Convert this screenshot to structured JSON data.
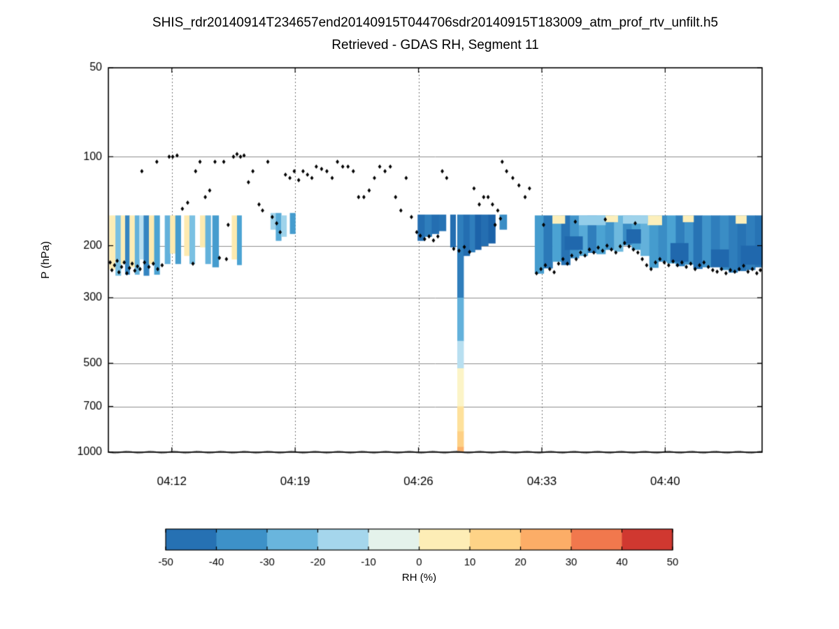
{
  "figure": {
    "title": "SHIS_rdr20140914T234657end20140915T044706sdr20140915T183009_atm_prof_rtv_unfilt.h5",
    "subtitle": "Retrieved - GDAS RH, Segment 11",
    "ylabel": "P (hPa)",
    "colorbar_label": "RH (%)"
  },
  "chart_data": {
    "type": "heatmap",
    "title": "SHIS_rdr20140914T234657end20140915T044706sdr20140915T183009_atm_prof_rtv_unfilt.h5",
    "subtitle": "Retrieved - GDAS RH, Segment 11",
    "xlabel": "",
    "ylabel": "P (hPa)",
    "y_scale": "log",
    "y_range": [
      50,
      1000
    ],
    "y_ticks": [
      50,
      100,
      200,
      300,
      500,
      700,
      1000
    ],
    "y_gridlines": [
      100,
      200,
      300,
      500,
      700
    ],
    "x_range_minutes": [
      8.4,
      45.5
    ],
    "x_ticks": [
      {
        "label": "04:12",
        "minute": 12
      },
      {
        "label": "04:19",
        "minute": 19
      },
      {
        "label": "04:26",
        "minute": 26
      },
      {
        "label": "04:33",
        "minute": 33
      },
      {
        "label": "04:40",
        "minute": 40
      }
    ],
    "colorbar": {
      "label": "RH (%)",
      "range": [
        -50,
        50
      ],
      "ticks": [
        -50,
        -40,
        -30,
        -20,
        -10,
        0,
        10,
        20,
        30,
        40,
        50
      ],
      "colormap_stops": [
        [
          -50,
          "#1c63a9"
        ],
        [
          -40,
          "#2f7ebc"
        ],
        [
          -30,
          "#4ba3d3"
        ],
        [
          -20,
          "#86c7e6"
        ],
        [
          -12,
          "#b8dff0"
        ],
        [
          -6,
          "#dff0f0"
        ],
        [
          0,
          "#fbf9d2"
        ],
        [
          6,
          "#fdeab0"
        ],
        [
          12,
          "#fedc90"
        ],
        [
          20,
          "#fdc377"
        ],
        [
          28,
          "#fb9f5d"
        ],
        [
          36,
          "#f0724b"
        ],
        [
          44,
          "#d43d30"
        ],
        [
          50,
          "#b91f2e"
        ]
      ]
    },
    "heatmap_rects": [
      [
        8.45,
        8.8,
        158,
        240,
        5
      ],
      [
        8.8,
        9.1,
        158,
        252,
        -22
      ],
      [
        9.1,
        9.35,
        158,
        230,
        5
      ],
      [
        9.35,
        9.6,
        158,
        250,
        -38
      ],
      [
        9.6,
        9.9,
        158,
        236,
        5
      ],
      [
        9.9,
        10.15,
        158,
        250,
        -26
      ],
      [
        10.15,
        10.4,
        158,
        222,
        -12
      ],
      [
        10.4,
        10.7,
        158,
        252,
        -38
      ],
      [
        10.7,
        11.0,
        158,
        230,
        6
      ],
      [
        11.0,
        11.3,
        158,
        250,
        -30
      ],
      [
        11.6,
        11.9,
        158,
        230,
        -26
      ],
      [
        11.9,
        12.2,
        158,
        212,
        6
      ],
      [
        12.2,
        12.5,
        158,
        230,
        -32
      ],
      [
        12.7,
        13.0,
        158,
        216,
        6
      ],
      [
        13.0,
        13.3,
        158,
        230,
        -22
      ],
      [
        13.6,
        13.9,
        158,
        202,
        6
      ],
      [
        13.9,
        14.2,
        158,
        230,
        -26
      ],
      [
        14.3,
        14.65,
        158,
        236,
        -32
      ],
      [
        15.4,
        15.7,
        158,
        222,
        6
      ],
      [
        15.7,
        15.95,
        158,
        232,
        -30
      ],
      [
        17.6,
        17.9,
        155,
        176,
        -16
      ],
      [
        17.9,
        18.2,
        155,
        192,
        -28
      ],
      [
        18.2,
        18.5,
        158,
        186,
        -16
      ],
      [
        18.7,
        19.0,
        155,
        182,
        -32
      ],
      [
        25.95,
        26.35,
        157,
        192,
        -46
      ],
      [
        26.35,
        26.75,
        157,
        186,
        -40
      ],
      [
        26.75,
        27.15,
        157,
        182,
        -46
      ],
      [
        27.15,
        27.55,
        157,
        178,
        -44
      ],
      [
        27.8,
        28.1,
        157,
        202,
        -46
      ],
      [
        28.2,
        28.55,
        157,
        300,
        -40
      ],
      [
        28.2,
        28.55,
        300,
        420,
        -26
      ],
      [
        28.2,
        28.55,
        420,
        520,
        -12
      ],
      [
        28.2,
        28.55,
        520,
        700,
        2
      ],
      [
        28.2,
        28.55,
        700,
        850,
        10
      ],
      [
        28.2,
        28.55,
        850,
        960,
        16
      ],
      [
        28.2,
        28.55,
        960,
        1000,
        24
      ],
      [
        28.55,
        28.9,
        157,
        216,
        -46
      ],
      [
        28.9,
        29.2,
        157,
        210,
        -40
      ],
      [
        29.2,
        29.55,
        157,
        206,
        -50
      ],
      [
        29.55,
        29.95,
        157,
        200,
        -46
      ],
      [
        29.95,
        30.35,
        157,
        196,
        -50
      ],
      [
        30.6,
        31.0,
        157,
        176,
        -36
      ],
      [
        32.6,
        33.1,
        158,
        248,
        -32
      ],
      [
        33.1,
        33.6,
        158,
        238,
        -42
      ],
      [
        33.6,
        34.1,
        158,
        226,
        -30
      ],
      [
        34.1,
        34.6,
        158,
        232,
        -44
      ],
      [
        34.6,
        35.1,
        158,
        220,
        -34
      ],
      [
        35.1,
        35.6,
        158,
        216,
        -28
      ],
      [
        35.6,
        36.1,
        158,
        211,
        -40
      ],
      [
        36.1,
        36.6,
        158,
        213,
        -30
      ],
      [
        36.6,
        37.1,
        158,
        206,
        -34
      ],
      [
        37.1,
        37.6,
        158,
        209,
        -24
      ],
      [
        37.6,
        38.1,
        158,
        199,
        -36
      ],
      [
        38.1,
        38.6,
        158,
        206,
        -30
      ],
      [
        38.6,
        39.1,
        158,
        216,
        -26
      ],
      [
        39.1,
        39.6,
        158,
        237,
        -32
      ],
      [
        39.6,
        40.1,
        158,
        226,
        -36
      ],
      [
        40.1,
        40.6,
        158,
        229,
        -30
      ],
      [
        40.6,
        41.1,
        158,
        234,
        -40
      ],
      [
        41.1,
        41.6,
        158,
        231,
        -34
      ],
      [
        41.6,
        42.1,
        158,
        239,
        -44
      ],
      [
        42.1,
        42.6,
        158,
        236,
        -34
      ],
      [
        42.6,
        43.1,
        158,
        233,
        -40
      ],
      [
        43.1,
        43.6,
        158,
        241,
        -36
      ],
      [
        43.6,
        44.1,
        158,
        246,
        -40
      ],
      [
        44.1,
        44.6,
        158,
        243,
        -44
      ],
      [
        44.6,
        45.1,
        158,
        241,
        -40
      ],
      [
        45.1,
        45.5,
        158,
        236,
        -44
      ],
      [
        33.6,
        34.3,
        158,
        168,
        4
      ],
      [
        36.6,
        37.3,
        158,
        166,
        4
      ],
      [
        39.0,
        39.8,
        158,
        170,
        4
      ],
      [
        41.0,
        41.6,
        158,
        166,
        4
      ],
      [
        44.0,
        44.6,
        158,
        168,
        4
      ],
      [
        35.1,
        36.6,
        158,
        170,
        -18
      ],
      [
        37.6,
        39.0,
        158,
        168,
        -16
      ],
      [
        34.3,
        35.3,
        186,
        206,
        -48
      ],
      [
        37.8,
        38.6,
        176,
        196,
        -48
      ],
      [
        40.3,
        41.3,
        196,
        226,
        -48
      ],
      [
        42.6,
        43.6,
        206,
        236,
        -48
      ],
      [
        44.3,
        45.5,
        200,
        231,
        -48
      ]
    ],
    "cloud_top_markers": {
      "marker": "diamond",
      "color": "#000000",
      "points": [
        [
          8.5,
          228
        ],
        [
          8.6,
          242
        ],
        [
          8.75,
          233
        ],
        [
          8.9,
          225
        ],
        [
          9.0,
          246
        ],
        [
          9.15,
          236
        ],
        [
          9.3,
          228
        ],
        [
          9.45,
          248
        ],
        [
          9.6,
          238
        ],
        [
          9.75,
          230
        ],
        [
          9.9,
          243
        ],
        [
          10.05,
          235
        ],
        [
          10.2,
          240
        ],
        [
          10.45,
          228
        ],
        [
          10.7,
          236
        ],
        [
          10.95,
          230
        ],
        [
          11.2,
          240
        ],
        [
          11.45,
          233
        ],
        [
          10.3,
          112
        ],
        [
          11.15,
          104
        ],
        [
          11.85,
          100
        ],
        [
          12.05,
          100
        ],
        [
          12.3,
          99
        ],
        [
          12.6,
          150
        ],
        [
          12.9,
          143
        ],
        [
          13.2,
          230
        ],
        [
          13.35,
          112
        ],
        [
          13.6,
          104
        ],
        [
          13.9,
          137
        ],
        [
          14.15,
          130
        ],
        [
          14.45,
          104
        ],
        [
          14.7,
          220
        ],
        [
          14.95,
          104
        ],
        [
          15.1,
          222
        ],
        [
          15.2,
          170
        ],
        [
          15.5,
          100
        ],
        [
          15.7,
          98
        ],
        [
          15.9,
          100
        ],
        [
          16.1,
          99
        ],
        [
          16.35,
          122
        ],
        [
          16.6,
          112
        ],
        [
          16.95,
          145
        ],
        [
          17.15,
          152
        ],
        [
          17.45,
          104
        ],
        [
          17.7,
          160
        ],
        [
          17.95,
          168
        ],
        [
          18.15,
          180
        ],
        [
          18.45,
          115
        ],
        [
          18.7,
          118
        ],
        [
          18.95,
          112
        ],
        [
          19.2,
          120
        ],
        [
          19.45,
          112
        ],
        [
          19.7,
          115
        ],
        [
          19.95,
          118
        ],
        [
          20.2,
          108
        ],
        [
          20.5,
          110
        ],
        [
          20.8,
          112
        ],
        [
          21.1,
          118
        ],
        [
          21.4,
          104
        ],
        [
          21.7,
          108
        ],
        [
          22.0,
          108
        ],
        [
          22.3,
          112
        ],
        [
          22.6,
          137
        ],
        [
          22.9,
          137
        ],
        [
          23.2,
          130
        ],
        [
          23.5,
          118
        ],
        [
          23.8,
          108
        ],
        [
          24.1,
          112
        ],
        [
          24.4,
          108
        ],
        [
          24.7,
          137
        ],
        [
          25.0,
          152
        ],
        [
          25.3,
          118
        ],
        [
          25.6,
          160
        ],
        [
          25.9,
          180
        ],
        [
          26.1,
          185
        ],
        [
          26.35,
          190
        ],
        [
          26.6,
          186
        ],
        [
          26.85,
          192
        ],
        [
          27.1,
          186
        ],
        [
          27.35,
          112
        ],
        [
          27.6,
          118
        ],
        [
          28.0,
          205
        ],
        [
          28.3,
          208
        ],
        [
          28.6,
          202
        ],
        [
          28.9,
          210
        ],
        [
          29.15,
          128
        ],
        [
          29.45,
          145
        ],
        [
          29.7,
          137
        ],
        [
          29.95,
          137
        ],
        [
          30.2,
          145
        ],
        [
          30.5,
          152
        ],
        [
          30.35,
          170
        ],
        [
          30.65,
          162
        ],
        [
          30.75,
          104
        ],
        [
          31.0,
          112
        ],
        [
          31.35,
          118
        ],
        [
          31.7,
          125
        ],
        [
          32.05,
          137
        ],
        [
          32.3,
          128
        ],
        [
          32.7,
          248
        ],
        [
          32.95,
          240
        ],
        [
          33.1,
          170
        ],
        [
          33.2,
          233
        ],
        [
          33.45,
          240
        ],
        [
          33.7,
          246
        ],
        [
          33.95,
          230
        ],
        [
          34.2,
          222
        ],
        [
          34.45,
          230
        ],
        [
          34.7,
          216
        ],
        [
          34.9,
          166
        ],
        [
          34.95,
          222
        ],
        [
          35.2,
          211
        ],
        [
          35.45,
          216
        ],
        [
          35.7,
          206
        ],
        [
          35.95,
          211
        ],
        [
          36.2,
          203
        ],
        [
          36.45,
          208
        ],
        [
          36.6,
          163
        ],
        [
          36.7,
          200
        ],
        [
          36.95,
          206
        ],
        [
          37.2,
          211
        ],
        [
          37.45,
          201
        ],
        [
          37.7,
          196
        ],
        [
          37.95,
          201
        ],
        [
          38.2,
          206
        ],
        [
          38.3,
          168
        ],
        [
          38.45,
          211
        ],
        [
          38.7,
          222
        ],
        [
          38.95,
          233
        ],
        [
          39.2,
          240
        ],
        [
          39.45,
          228
        ],
        [
          39.7,
          222
        ],
        [
          39.95,
          228
        ],
        [
          40.2,
          233
        ],
        [
          40.45,
          226
        ],
        [
          40.7,
          233
        ],
        [
          40.95,
          228
        ],
        [
          41.2,
          236
        ],
        [
          41.45,
          230
        ],
        [
          41.7,
          240
        ],
        [
          41.95,
          233
        ],
        [
          42.2,
          228
        ],
        [
          42.45,
          236
        ],
        [
          42.7,
          242
        ],
        [
          42.95,
          245
        ],
        [
          43.2,
          240
        ],
        [
          43.45,
          248
        ],
        [
          43.7,
          242
        ],
        [
          43.95,
          245
        ],
        [
          44.2,
          240
        ],
        [
          44.45,
          234
        ],
        [
          44.7,
          245
        ],
        [
          44.95,
          240
        ],
        [
          45.2,
          248
        ],
        [
          45.4,
          242
        ]
      ]
    },
    "surface_markers": {
      "marker": "dot",
      "color": "#7a7a7a",
      "pressure": 1000,
      "t_start": 8.45,
      "t_end": 45.45,
      "spacing_minutes": 0.09
    }
  }
}
